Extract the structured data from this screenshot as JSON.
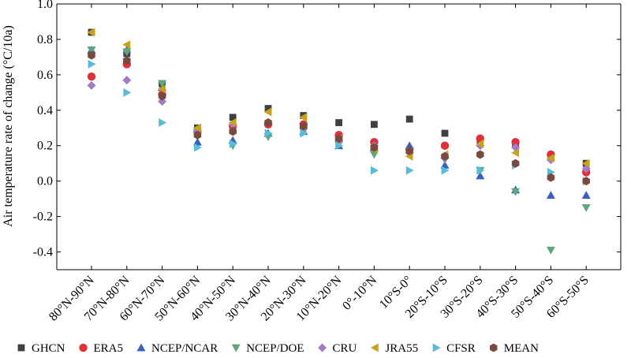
{
  "chart_data": {
    "type": "scatter",
    "title": "",
    "xlabel": "",
    "ylabel": "Air temperature rate of change (°C/10a)",
    "ylim": [
      -0.5,
      1.0
    ],
    "yticks": [
      -0.4,
      -0.2,
      0.0,
      0.2,
      0.4,
      0.6,
      0.8,
      1.0
    ],
    "ytick_labels": [
      "-0.4",
      "-0.2",
      "0.0",
      "0.2",
      "0.4",
      "0.6",
      "0.8",
      "1.0"
    ],
    "grid": false,
    "legend_position": "bottom",
    "categories": [
      "80°N-90°N",
      "70°N-80°N",
      "60°N-70°N",
      "50°N-60°N",
      "40°N-50°N",
      "30°N-40°N",
      "20°N-30°N",
      "10°N-20°N",
      "0°-10°N",
      "10°S-0°",
      "20°S-10°S",
      "30°S-20°S",
      "40°S-30°S",
      "50°S-40°S",
      "60°S-50°S"
    ],
    "series": [
      {
        "name": "GHCN",
        "marker": "square",
        "color": "#404040",
        "values": [
          0.84,
          0.72,
          0.55,
          0.3,
          0.36,
          0.41,
          0.37,
          0.33,
          0.32,
          0.35,
          0.27,
          0.23,
          0.21,
          0.14,
          0.1
        ]
      },
      {
        "name": "ERA5",
        "marker": "circle",
        "color": "#e0303a",
        "values": [
          0.59,
          0.66,
          0.49,
          0.28,
          0.31,
          0.32,
          0.32,
          0.26,
          0.22,
          0.18,
          0.2,
          0.24,
          0.22,
          0.15,
          0.05
        ]
      },
      {
        "name": "NCEP/NCAR",
        "marker": "triangle-up",
        "color": "#3a5fc0",
        "values": [
          0.74,
          0.74,
          0.53,
          0.22,
          0.23,
          0.27,
          0.28,
          0.2,
          0.19,
          0.2,
          0.09,
          0.03,
          -0.05,
          -0.08,
          -0.08
        ]
      },
      {
        "name": "NCEP/DOE",
        "marker": "triangle-down",
        "color": "#5fa77a",
        "values": [
          0.74,
          0.73,
          0.55,
          0.28,
          0.2,
          0.25,
          0.28,
          0.21,
          0.15,
          0.17,
          0.12,
          0.06,
          -0.06,
          -0.39,
          -0.15
        ]
      },
      {
        "name": "CRU",
        "marker": "diamond",
        "color": "#a27cc6",
        "values": [
          0.54,
          0.57,
          0.45,
          0.28,
          0.32,
          0.33,
          0.3,
          0.22,
          0.2,
          0.16,
          0.13,
          0.2,
          0.19,
          0.12,
          0.07
        ]
      },
      {
        "name": "JRA55",
        "marker": "triangle-left",
        "color": "#c9a21b",
        "values": [
          0.84,
          0.77,
          0.52,
          0.3,
          0.33,
          0.39,
          0.36,
          0.24,
          0.18,
          0.14,
          0.15,
          0.21,
          0.16,
          0.13,
          0.1
        ]
      },
      {
        "name": "CFSR",
        "marker": "triangle-right",
        "color": "#56bcd8",
        "values": [
          0.66,
          0.5,
          0.33,
          0.19,
          0.21,
          0.27,
          0.27,
          0.2,
          0.06,
          0.06,
          0.06,
          0.06,
          0.09,
          0.05,
          0.0
        ]
      },
      {
        "name": "MEAN",
        "marker": "hexagon",
        "color": "#7a4a40",
        "values": [
          0.71,
          0.68,
          0.48,
          0.26,
          0.28,
          0.33,
          0.31,
          0.24,
          0.19,
          0.17,
          0.14,
          0.15,
          0.1,
          0.02,
          0.0
        ]
      }
    ]
  }
}
